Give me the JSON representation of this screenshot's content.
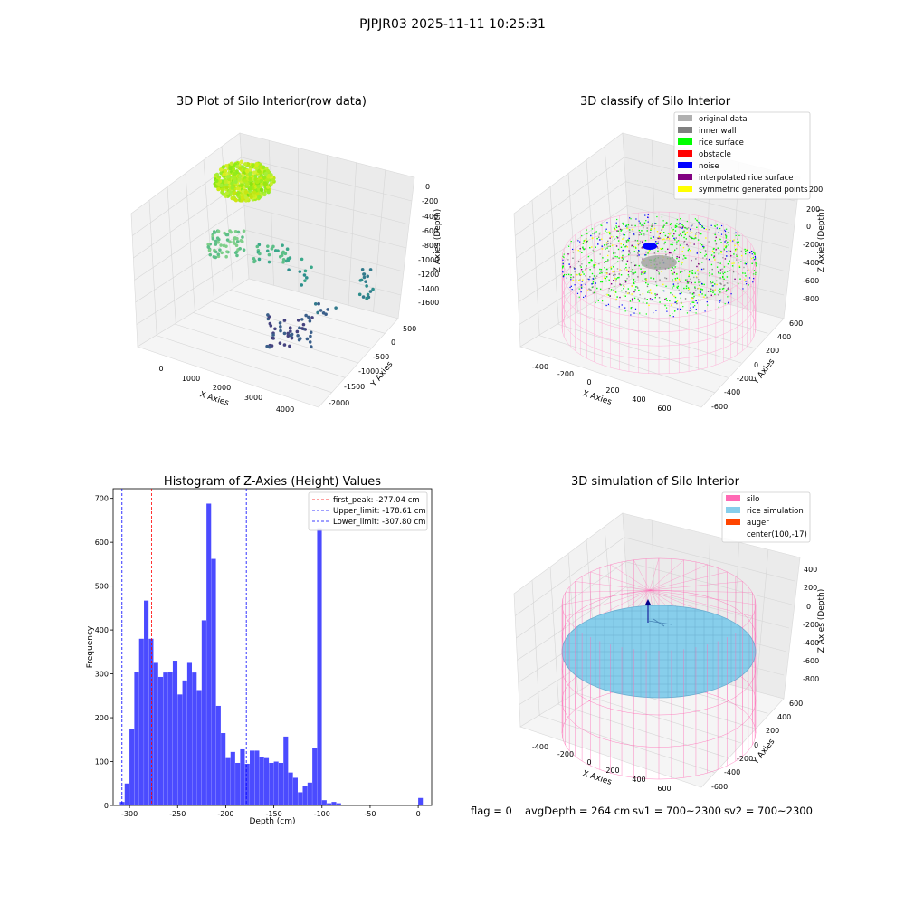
{
  "figure_title": "PJPJR03 2025-11-11 10:25:31",
  "footer": {
    "flag": "flag = 0",
    "avg_depth": "avgDepth = 264 cm",
    "sv1": "sv1 = 700~2300",
    "sv2": "sv2 = 700~2300"
  },
  "colors": {
    "hist_bar": "#4b4bff",
    "peak_line": "#ff0000",
    "limit_line": "#0000ff",
    "silo": "#ff69b4",
    "rice_sim": "#87ceeb",
    "auger": "#ff4500"
  },
  "panels": {
    "raw": {
      "title": "3D Plot of Silo Interior(row data)",
      "xlabel": "X Axies",
      "ylabel": "Y Axies",
      "zlabel": "Z Axies (Depth)",
      "x_ticks": [
        "0",
        "1000",
        "2000",
        "3000",
        "4000"
      ],
      "y_ticks": [
        "500",
        "0",
        "-500",
        "-1000",
        "-1500",
        "-2000"
      ],
      "z_ticks": [
        "0",
        "-200",
        "-400",
        "-600",
        "-800",
        "-1000",
        "-1200",
        "-1400",
        "-1600"
      ]
    },
    "classify": {
      "title": "3D classify of Silo Interior",
      "xlabel": "X Axies",
      "ylabel": "Y Axies",
      "zlabel": "Z Axies (Depth)",
      "x_ticks": [
        "-400",
        "-200",
        "0",
        "200",
        "400",
        "600"
      ],
      "y_ticks": [
        "600",
        "400",
        "200",
        "0",
        "-200",
        "-400",
        "-600"
      ],
      "z_ticks": [
        "200",
        "0",
        "-200",
        "-400",
        "-600",
        "-800"
      ],
      "legend": [
        {
          "label": "original data",
          "color": "#b0b0b0"
        },
        {
          "label": "inner wall",
          "color": "#808080"
        },
        {
          "label": "rice surface",
          "color": "#00ff00"
        },
        {
          "label": "obstacle",
          "color": "#ff0000"
        },
        {
          "label": "noise",
          "color": "#0000ff"
        },
        {
          "label": "interpolated rice surface",
          "color": "#800080"
        },
        {
          "label": "symmetric generated points",
          "color": "#ffff00"
        }
      ]
    },
    "simulation": {
      "title": "3D simulation of Silo Interior",
      "xlabel": "X Axies",
      "ylabel": "Y Axies",
      "zlabel": "Z Axies (Depth)",
      "x_ticks": [
        "-400",
        "-200",
        "0",
        "200",
        "400",
        "600"
      ],
      "y_ticks": [
        "600",
        "400",
        "200",
        "0",
        "-200",
        "-400",
        "-600"
      ],
      "z_ticks": [
        "400",
        "200",
        "0",
        "-200",
        "-400",
        "-600",
        "-800"
      ],
      "legend": [
        {
          "label": "silo",
          "color": "#ff69b4"
        },
        {
          "label": "rice simulation",
          "color": "#87ceeb"
        },
        {
          "label": "auger",
          "color": "#ff4500"
        },
        {
          "label": "center(100,-17)",
          "color": ""
        }
      ]
    }
  },
  "chart_data": {
    "type": "bar",
    "title": "Histogram of Z-Axies (Height) Values",
    "xlabel": "Depth (cm)",
    "ylabel": "Frequency",
    "xlim": [
      -317,
      14
    ],
    "ylim": [
      0,
      722
    ],
    "x_ticks": [
      -300,
      -250,
      -200,
      -150,
      -100,
      -50,
      0
    ],
    "y_ticks": [
      0,
      100,
      200,
      300,
      400,
      500,
      600,
      700
    ],
    "bin_width": 5,
    "bins_start": [
      -310,
      -305,
      -300,
      -295,
      -290,
      -285,
      -280,
      -275,
      -270,
      -265,
      -260,
      -255,
      -250,
      -245,
      -240,
      -235,
      -230,
      -225,
      -220,
      -215,
      -210,
      -205,
      -200,
      -195,
      -190,
      -185,
      -180,
      -175,
      -170,
      -165,
      -160,
      -155,
      -150,
      -145,
      -140,
      -135,
      -130,
      -125,
      -120,
      -115,
      -110,
      -105,
      -100,
      -95,
      -90,
      -85,
      -80,
      -75,
      -70,
      -65,
      -60,
      -55,
      -50,
      -45,
      -40,
      -35,
      -30,
      -25,
      -20,
      -15,
      -10,
      -5,
      0
    ],
    "values": [
      8,
      50,
      175,
      305,
      380,
      467,
      380,
      325,
      293,
      303,
      305,
      330,
      253,
      285,
      325,
      303,
      263,
      422,
      688,
      562,
      227,
      165,
      108,
      122,
      97,
      128,
      95,
      125,
      125,
      110,
      108,
      97,
      100,
      97,
      157,
      75,
      63,
      30,
      45,
      52,
      130,
      632,
      12,
      5,
      8,
      5,
      0,
      0,
      0,
      0,
      0,
      0,
      0,
      0,
      0,
      0,
      0,
      0,
      0,
      0,
      0,
      0,
      17
    ],
    "vlines": [
      {
        "name": "first_peak: -277.04 cm",
        "x": -277.04,
        "color": "#ff0000"
      },
      {
        "name": "Upper_limit: -178.61 cm",
        "x": -178.61,
        "color": "#0000ff"
      },
      {
        "name": "Lower_limit: -307.80 cm",
        "x": -307.8,
        "color": "#0000ff"
      }
    ],
    "legend_position": "top-right"
  }
}
